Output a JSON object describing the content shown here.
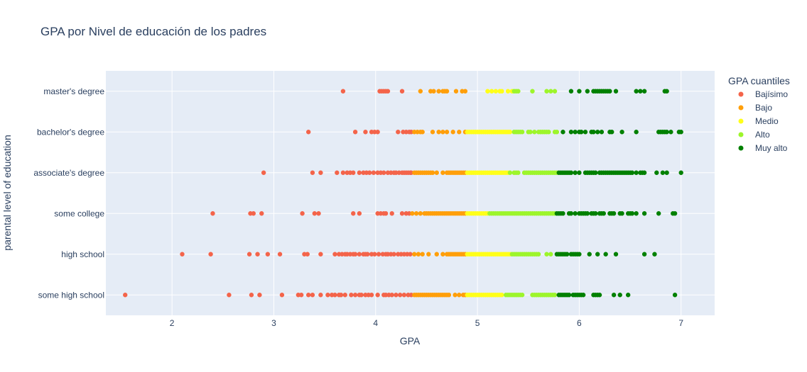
{
  "chart_data": {
    "type": "scatter",
    "title": "GPA por Nivel de educación de los padres",
    "xlabel": "GPA",
    "ylabel": "parental level of education",
    "xlim": [
      1.35,
      7.33
    ],
    "x_ticks": [
      2,
      3,
      4,
      5,
      6,
      7
    ],
    "categories": [
      "some high school",
      "high school",
      "some college",
      "associate's degree",
      "bachelor's degree",
      "master's degree"
    ],
    "legend": {
      "title": "GPA cuantiles",
      "position": "right"
    },
    "grid": true,
    "series": [
      {
        "name": "Bajísimo",
        "color": "#f4644a",
        "points": {
          "master's degree": [
            3.68,
            4.04,
            4.06,
            4.08,
            4.1,
            4.12,
            4.26
          ],
          "bachelor's degree": [
            3.34,
            3.8,
            3.9,
            3.96,
            3.99,
            4.02,
            4.22,
            4.27,
            4.3,
            4.33,
            4.35
          ],
          "associate's degree": [
            2.9,
            3.38,
            3.46,
            3.62,
            3.68,
            3.72,
            3.75,
            3.78,
            3.84,
            3.88,
            3.91,
            3.94,
            3.98,
            4.02,
            4.05,
            4.08,
            4.12,
            4.15,
            4.18,
            4.2,
            4.23,
            4.26,
            4.28,
            4.3,
            4.32,
            4.34,
            4.35
          ],
          "some college": [
            2.4,
            2.77,
            2.8,
            2.88,
            3.28,
            3.4,
            3.44,
            3.78,
            3.84,
            4.02,
            4.05,
            4.08,
            4.1,
            4.16,
            4.26,
            4.3,
            4.33
          ],
          "high school": [
            2.1,
            2.38,
            2.76,
            2.84,
            2.94,
            3.06,
            3.3,
            3.33,
            3.46,
            3.6,
            3.64,
            3.67,
            3.7,
            3.72,
            3.75,
            3.78,
            3.8,
            3.84,
            3.88,
            3.9,
            3.92,
            3.96,
            3.99,
            4.03,
            4.07,
            4.1,
            4.12,
            4.15,
            4.18,
            4.22,
            4.25,
            4.28,
            4.31,
            4.34
          ],
          "some high school": [
            1.54,
            2.56,
            2.78,
            2.86,
            3.08,
            3.24,
            3.27,
            3.34,
            3.38,
            3.46,
            3.53,
            3.57,
            3.6,
            3.64,
            3.66,
            3.7,
            3.76,
            3.8,
            3.84,
            3.86,
            3.9,
            3.93,
            3.96,
            4.02,
            4.08,
            4.1,
            4.13,
            4.16,
            4.2,
            4.24,
            4.28,
            4.32,
            4.35
          ]
        }
      },
      {
        "name": "Bajo",
        "color": "#ff9f0a",
        "points": {
          "master's degree": [
            4.44,
            4.54,
            4.57,
            4.62,
            4.66,
            4.68,
            4.7,
            4.79,
            4.85,
            4.88
          ],
          "bachelor's degree": [
            4.38,
            4.41,
            4.44,
            4.46,
            4.56,
            4.62,
            4.66,
            4.7,
            4.76,
            4.82,
            4.88
          ],
          "associate's degree": [
            4.38,
            4.4,
            4.42,
            4.44,
            4.46,
            4.48,
            4.5,
            4.52,
            4.54,
            4.56,
            4.6,
            4.66,
            4.7,
            4.72,
            4.74,
            4.76,
            4.78,
            4.8,
            4.82,
            4.84,
            4.86,
            4.88
          ],
          "some college": [
            4.36,
            4.4,
            4.44,
            4.48,
            4.5,
            4.52,
            4.54,
            4.56,
            4.58,
            4.6,
            4.62,
            4.64,
            4.66,
            4.68,
            4.7,
            4.72,
            4.74,
            4.76,
            4.78,
            4.8,
            4.82,
            4.84,
            4.86,
            4.88
          ],
          "high school": [
            4.38,
            4.42,
            4.46,
            4.52,
            4.6,
            4.66,
            4.7,
            4.72,
            4.74,
            4.76,
            4.78,
            4.8,
            4.82,
            4.84,
            4.86,
            4.88
          ],
          "some high school": [
            4.38,
            4.4,
            4.42,
            4.44,
            4.46,
            4.48,
            4.5,
            4.52,
            4.54,
            4.56,
            4.58,
            4.6,
            4.62,
            4.64,
            4.66,
            4.68,
            4.7,
            4.72,
            4.78,
            4.82,
            4.86,
            4.88
          ]
        }
      },
      {
        "name": "Medio",
        "color": "#ffff19",
        "points": {
          "master's degree": [
            5.1,
            5.14,
            5.18,
            5.22,
            5.24,
            5.3,
            5.34
          ],
          "bachelor's degree": [
            4.9,
            4.92,
            4.94,
            4.96,
            4.98,
            5.0,
            5.02,
            5.04,
            5.06,
            5.08,
            5.1,
            5.12,
            5.14,
            5.16,
            5.18,
            5.2,
            5.22,
            5.24,
            5.26,
            5.28,
            5.3,
            5.32
          ],
          "associate's degree": [
            4.9,
            4.92,
            4.94,
            4.96,
            4.98,
            5.0,
            5.02,
            5.04,
            5.06,
            5.08,
            5.1,
            5.12,
            5.14,
            5.16,
            5.18,
            5.2,
            5.22,
            5.24,
            5.26,
            5.28,
            5.3
          ],
          "some college": [
            4.9,
            4.92,
            4.94,
            4.96,
            4.98,
            5.0,
            5.02,
            5.04,
            5.06,
            5.08,
            5.1
          ],
          "high school": [
            4.9,
            4.92,
            4.94,
            4.96,
            4.98,
            5.0,
            5.02,
            5.04,
            5.06,
            5.08,
            5.1,
            5.12,
            5.14,
            5.16,
            5.18,
            5.2,
            5.22,
            5.24,
            5.26,
            5.28,
            5.3,
            5.32
          ],
          "some high school": [
            4.9,
            4.92,
            4.94,
            4.96,
            4.98,
            5.0,
            5.02,
            5.04,
            5.06,
            5.08,
            5.1,
            5.12,
            5.14,
            5.16,
            5.18,
            5.2,
            5.22,
            5.24
          ]
        }
      },
      {
        "name": "Alto",
        "color": "#9df52b",
        "points": {
          "master's degree": [
            5.36,
            5.38,
            5.4,
            5.54,
            5.68,
            5.72,
            5.76
          ],
          "bachelor's degree": [
            5.36,
            5.38,
            5.4,
            5.42,
            5.44,
            5.5,
            5.52,
            5.56,
            5.6,
            5.62,
            5.64,
            5.66,
            5.68,
            5.7,
            5.76,
            5.78
          ],
          "associate's degree": [
            5.32,
            5.36,
            5.38,
            5.4,
            5.46,
            5.48,
            5.5,
            5.52,
            5.54,
            5.56,
            5.58,
            5.6,
            5.62,
            5.64,
            5.66,
            5.68,
            5.7,
            5.72,
            5.74,
            5.76,
            5.78
          ],
          "some college": [
            5.12,
            5.14,
            5.16,
            5.18,
            5.2,
            5.22,
            5.24,
            5.26,
            5.28,
            5.3,
            5.32,
            5.34,
            5.36,
            5.38,
            5.4,
            5.42,
            5.44,
            5.46,
            5.48,
            5.5,
            5.52,
            5.54,
            5.56,
            5.58,
            5.6,
            5.62,
            5.64,
            5.66,
            5.68,
            5.7,
            5.72,
            5.74,
            5.76
          ],
          "high school": [
            5.34,
            5.36,
            5.38,
            5.4,
            5.42,
            5.44,
            5.46,
            5.48,
            5.5,
            5.52,
            5.54,
            5.56,
            5.58,
            5.6,
            5.68,
            5.72
          ],
          "some high school": [
            5.28,
            5.3,
            5.32,
            5.34,
            5.36,
            5.38,
            5.4,
            5.42,
            5.44,
            5.54,
            5.56,
            5.58,
            5.6,
            5.62,
            5.64,
            5.66,
            5.68,
            5.7,
            5.72,
            5.74,
            5.76
          ]
        }
      },
      {
        "name": "Muy alto",
        "color": "#008000",
        "points": {
          "master's degree": [
            5.92,
            6.0,
            6.08,
            6.14,
            6.16,
            6.18,
            6.2,
            6.22,
            6.24,
            6.26,
            6.28,
            6.3,
            6.36,
            6.56,
            6.6,
            6.64,
            6.84,
            6.86
          ],
          "bachelor's degree": [
            5.84,
            5.92,
            5.96,
            6.0,
            6.02,
            6.06,
            6.12,
            6.14,
            6.18,
            6.22,
            6.3,
            6.32,
            6.42,
            6.56,
            6.78,
            6.8,
            6.82,
            6.84,
            6.86,
            6.9,
            6.98,
            7.0
          ],
          "associate's degree": [
            5.8,
            5.82,
            5.84,
            5.86,
            5.88,
            5.9,
            5.92,
            5.96,
            6.0,
            6.06,
            6.08,
            6.1,
            6.12,
            6.14,
            6.16,
            6.2,
            6.22,
            6.24,
            6.26,
            6.28,
            6.3,
            6.32,
            6.34,
            6.36,
            6.38,
            6.4,
            6.42,
            6.44,
            6.46,
            6.48,
            6.5,
            6.52,
            6.56,
            6.6,
            6.62,
            6.64,
            6.76,
            6.82,
            6.86,
            7.0
          ],
          "some college": [
            5.78,
            5.8,
            5.82,
            5.84,
            5.9,
            5.92,
            5.96,
            6.0,
            6.02,
            6.04,
            6.06,
            6.08,
            6.12,
            6.14,
            6.16,
            6.2,
            6.22,
            6.24,
            6.3,
            6.32,
            6.34,
            6.4,
            6.42,
            6.48,
            6.5,
            6.52,
            6.56,
            6.64,
            6.78,
            6.92,
            6.94
          ],
          "high school": [
            5.78,
            5.8,
            5.82,
            5.84,
            5.86,
            5.88,
            5.92,
            5.94,
            5.96,
            5.98,
            6.0,
            6.1,
            6.18,
            6.26,
            6.36,
            6.64,
            6.74
          ],
          "some high school": [
            5.8,
            5.82,
            5.84,
            5.86,
            5.88,
            5.9,
            5.94,
            5.96,
            5.98,
            6.0,
            6.02,
            6.04,
            6.14,
            6.16,
            6.18,
            6.2,
            6.34,
            6.4,
            6.48,
            6.94
          ]
        }
      }
    ]
  }
}
